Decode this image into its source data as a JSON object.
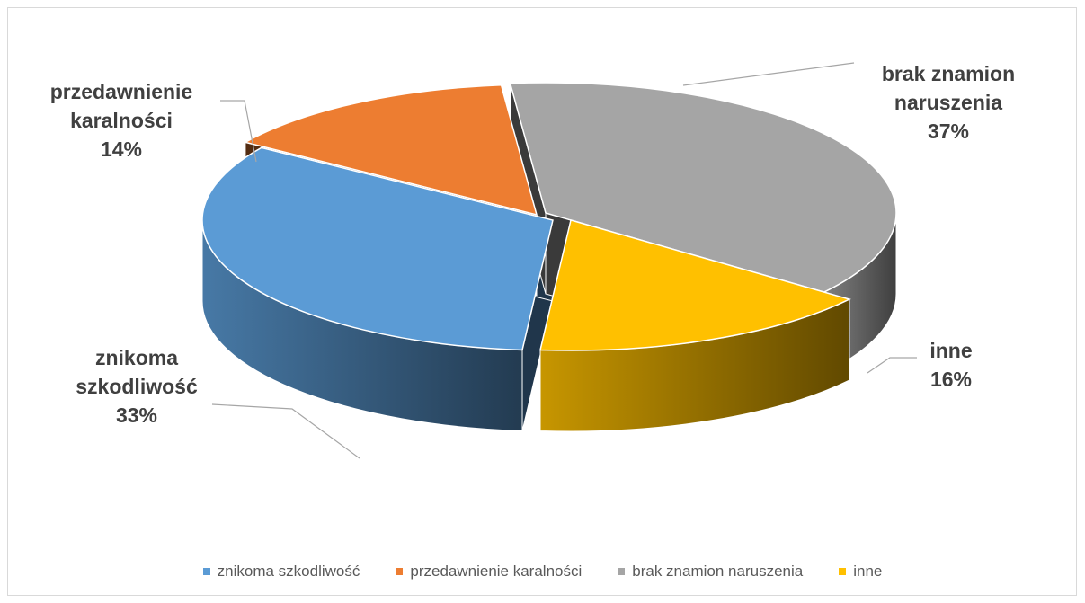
{
  "chart_data": {
    "type": "pie",
    "style": "3d-exploded",
    "slices": [
      {
        "label": "znikoma szkodliwość",
        "label_lines": [
          "znikoma",
          "szkodliwość",
          "33%"
        ],
        "value": 33,
        "color": "#5B9BD5"
      },
      {
        "label": "przedawnienie karalności",
        "label_lines": [
          "przedawnienie",
          "karalności",
          "14%"
        ],
        "value": 14,
        "color": "#ED7D31"
      },
      {
        "label": "brak znamion naruszenia",
        "label_lines": [
          "brak znamion",
          "naruszenia",
          "37%"
        ],
        "value": 37,
        "color": "#A5A5A5"
      },
      {
        "label": "inne",
        "label_lines": [
          "inne",
          "16%"
        ],
        "value": 16,
        "color": "#FFC000"
      }
    ],
    "legend_position": "bottom"
  }
}
